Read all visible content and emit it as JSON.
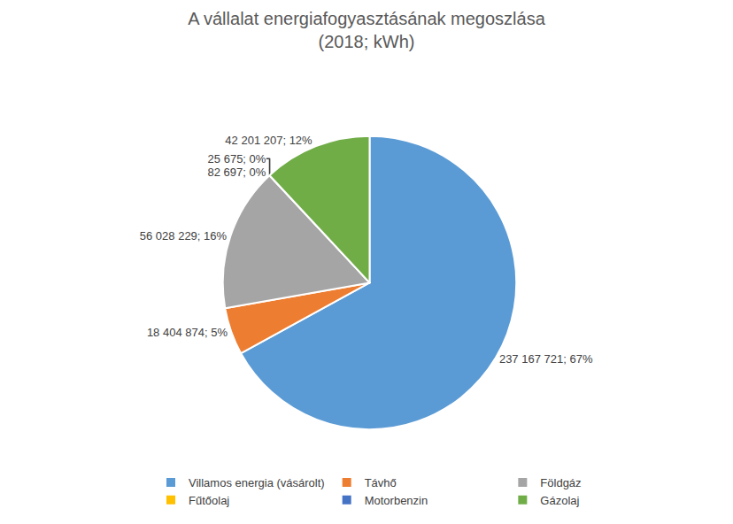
{
  "chart_data": {
    "type": "pie",
    "title": "A vállalat energiafogyasztásának megoszlása",
    "subtitle": "(2018; kWh)",
    "categories": [
      "Villamos energia (vásárolt)",
      "Távhő",
      "Földgáz",
      "Fűtőolaj",
      "Motorbenzin",
      "Gázolaj"
    ],
    "values": [
      237167721,
      18404874,
      56028229,
      82697,
      25675,
      42201207
    ],
    "value_labels": [
      "237 167 721; 67%",
      "18 404 874; 5%",
      "56 028 229; 16%",
      "82 697; 0%",
      "25 675; 0%",
      "42 201 207; 12%"
    ],
    "colors": [
      "#5b9bd5",
      "#ed7d31",
      "#a5a5a5",
      "#ffc000",
      "#4472c4",
      "#70ad47"
    ],
    "data_labels": true,
    "legend": "bottom"
  }
}
